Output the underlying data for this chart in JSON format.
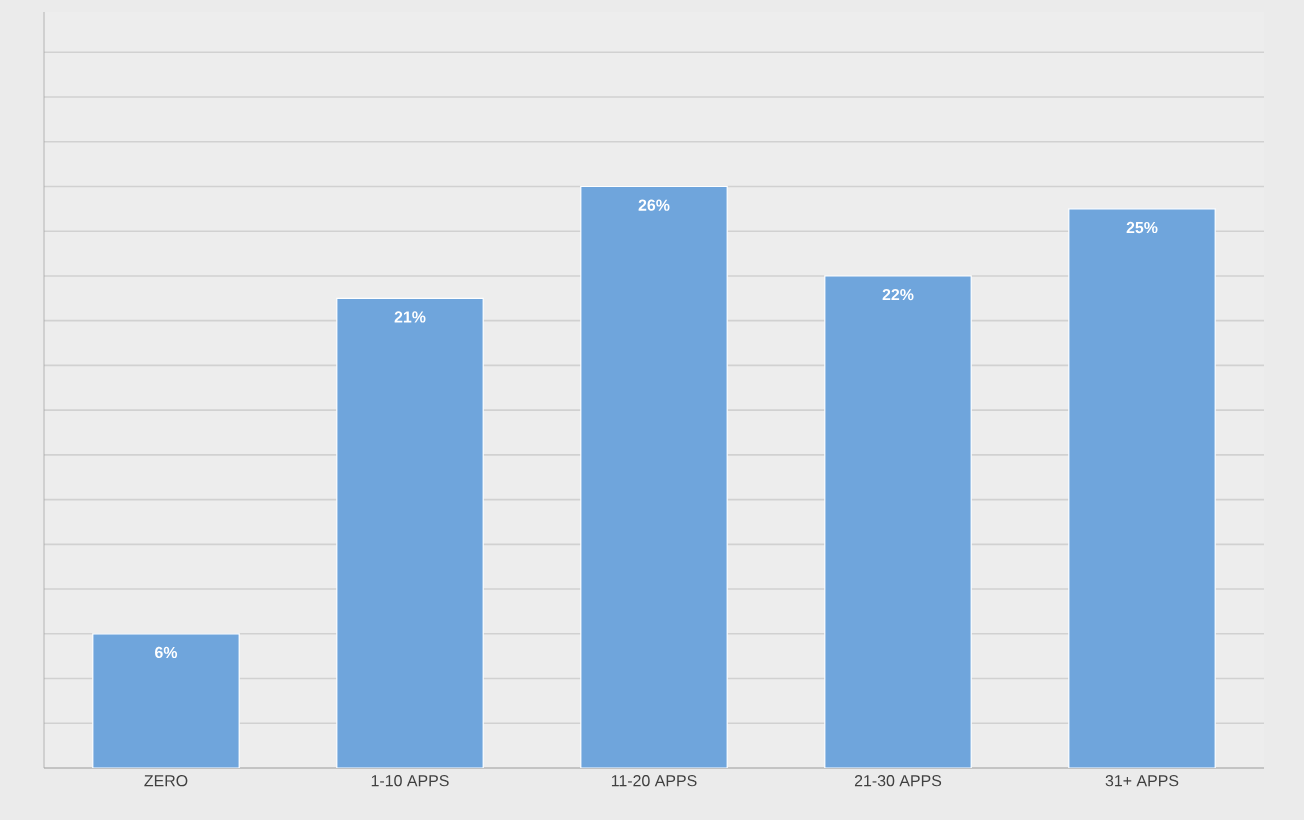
{
  "chart_data": {
    "type": "bar",
    "categories": [
      "ZERO",
      "1-10 APPS",
      "11-20 APPS",
      "21-30 APPS",
      "31+ APPS"
    ],
    "values": [
      6,
      21,
      26,
      22,
      25
    ],
    "value_labels": [
      "6%",
      "21%",
      "26%",
      "22%",
      "25%"
    ],
    "color": "#6fa5dc",
    "grid": "y",
    "tick_labels": "x"
  }
}
